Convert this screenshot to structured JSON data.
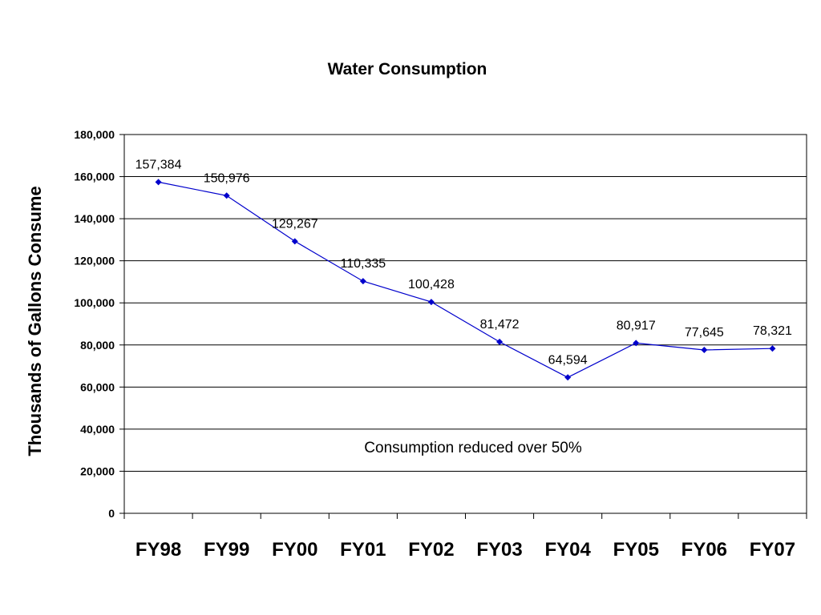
{
  "chart_data": {
    "type": "line",
    "title": "Water Consumption",
    "ylabel": "Thousands of Gallons Consume",
    "xlabel": "",
    "categories": [
      "FY98",
      "FY99",
      "FY00",
      "FY01",
      "FY02",
      "FY03",
      "FY04",
      "FY05",
      "FY06",
      "FY07"
    ],
    "values": [
      157384,
      150976,
      129267,
      110335,
      100428,
      81472,
      64594,
      80917,
      77645,
      78321
    ],
    "data_labels": [
      "157,384",
      "150,976",
      "129,267",
      "110,335",
      "100,428",
      "81,472",
      "64,594",
      "80,917",
      "77,645",
      "78,321"
    ],
    "ylim": [
      0,
      180000
    ],
    "yticks": [
      0,
      20000,
      40000,
      60000,
      80000,
      100000,
      120000,
      140000,
      160000,
      180000
    ],
    "ytick_labels": [
      "0",
      "20,000",
      "40,000",
      "60,000",
      "80,000",
      "100,000",
      "120,000",
      "140,000",
      "160,000",
      "180,000"
    ],
    "grid": true,
    "annotation": "Consumption reduced over 50%",
    "series_color": "#0000CC"
  }
}
